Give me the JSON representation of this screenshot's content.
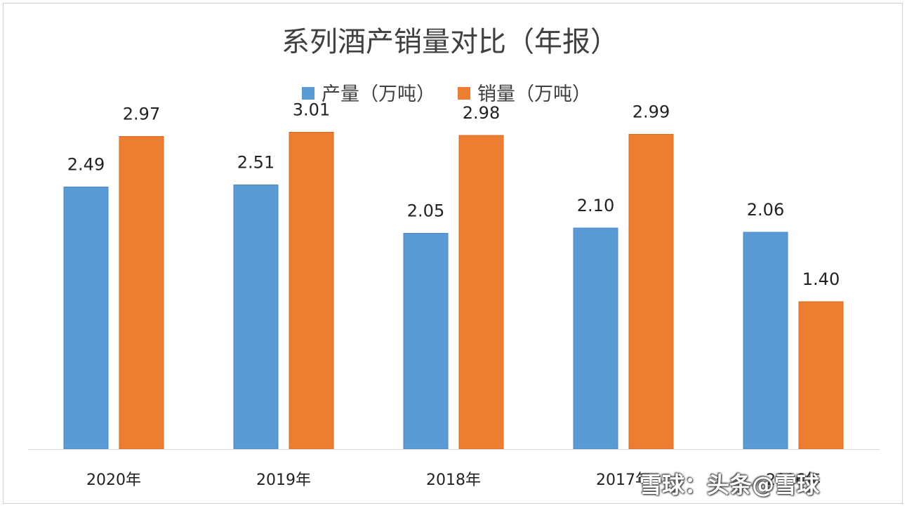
{
  "chart_data": {
    "type": "bar",
    "title": "系列酒产销量对比（年报）",
    "categories": [
      "2020年",
      "2019年",
      "2018年",
      "2017年",
      "2016年"
    ],
    "series": [
      {
        "name": "产量（万吨）",
        "color": "#5b9bd5",
        "values": [
          2.49,
          2.51,
          2.05,
          2.1,
          2.06
        ]
      },
      {
        "name": "销量（万吨）",
        "color": "#ed7d31",
        "values": [
          2.97,
          3.01,
          2.98,
          2.99,
          1.4
        ]
      }
    ],
    "ylim": [
      0,
      3.5
    ],
    "grid": false,
    "legend": "top-center",
    "data_labels": true
  },
  "watermark": {
    "text": "雪球：头条@雪球"
  }
}
